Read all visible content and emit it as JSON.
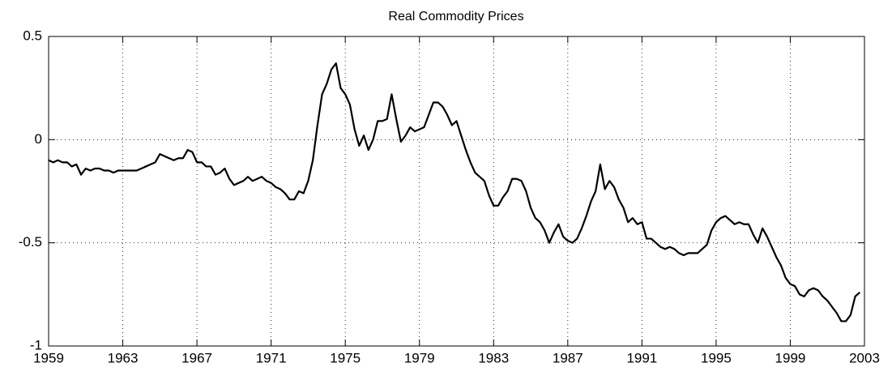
{
  "chart_data": {
    "type": "line",
    "title": "Real Commodity Prices",
    "color": "#000000",
    "grid": true,
    "x": [
      1959,
      1959.25,
      1959.5,
      1959.75,
      1960,
      1960.25,
      1960.5,
      1960.75,
      1961,
      1961.25,
      1961.5,
      1961.75,
      1962,
      1962.25,
      1962.5,
      1962.75,
      1963,
      1963.25,
      1963.5,
      1963.75,
      1964,
      1964.25,
      1964.5,
      1964.75,
      1965,
      1965.25,
      1965.5,
      1965.75,
      1966,
      1966.25,
      1966.5,
      1966.75,
      1967,
      1967.25,
      1967.5,
      1967.75,
      1968,
      1968.25,
      1968.5,
      1968.75,
      1969,
      1969.25,
      1969.5,
      1969.75,
      1970,
      1970.25,
      1970.5,
      1970.75,
      1971,
      1971.25,
      1971.5,
      1971.75,
      1972,
      1972.25,
      1972.5,
      1972.75,
      1973,
      1973.25,
      1973.5,
      1973.75,
      1974,
      1974.25,
      1974.5,
      1974.75,
      1975,
      1975.25,
      1975.5,
      1975.75,
      1976,
      1976.25,
      1976.5,
      1976.75,
      1977,
      1977.25,
      1977.5,
      1977.75,
      1978,
      1978.25,
      1978.5,
      1978.75,
      1979,
      1979.25,
      1979.5,
      1979.75,
      1980,
      1980.25,
      1980.5,
      1980.75,
      1981,
      1981.25,
      1981.5,
      1981.75,
      1982,
      1982.25,
      1982.5,
      1982.75,
      1983,
      1983.25,
      1983.5,
      1983.75,
      1984,
      1984.25,
      1984.5,
      1984.75,
      1985,
      1985.25,
      1985.5,
      1985.75,
      1986,
      1986.25,
      1986.5,
      1986.75,
      1987,
      1987.25,
      1987.5,
      1987.75,
      1988,
      1988.25,
      1988.5,
      1988.75,
      1989,
      1989.25,
      1989.5,
      1989.75,
      1990,
      1990.25,
      1990.5,
      1990.75,
      1991,
      1991.25,
      1991.5,
      1991.75,
      1992,
      1992.25,
      1992.5,
      1992.75,
      1993,
      1993.25,
      1993.5,
      1993.75,
      1994,
      1994.25,
      1994.5,
      1994.75,
      1995,
      1995.25,
      1995.5,
      1995.75,
      1996,
      1996.25,
      1996.5,
      1996.75,
      1997,
      1997.25,
      1997.5,
      1997.75,
      1998,
      1998.25,
      1998.5,
      1998.75,
      1999,
      1999.25,
      1999.5,
      1999.75,
      2000,
      2000.25,
      2000.5,
      2000.75,
      2001,
      2001.25,
      2001.5,
      2001.75,
      2002,
      2002.25,
      2002.5,
      2002.75
    ],
    "values": [
      -0.1,
      -0.11,
      -0.1,
      -0.11,
      -0.11,
      -0.13,
      -0.12,
      -0.17,
      -0.14,
      -0.15,
      -0.14,
      -0.14,
      -0.15,
      -0.15,
      -0.16,
      -0.15,
      -0.15,
      -0.15,
      -0.15,
      -0.15,
      -0.14,
      -0.13,
      -0.12,
      -0.11,
      -0.07,
      -0.08,
      -0.09,
      -0.1,
      -0.09,
      -0.09,
      -0.05,
      -0.06,
      -0.11,
      -0.11,
      -0.13,
      -0.13,
      -0.17,
      -0.16,
      -0.14,
      -0.19,
      -0.22,
      -0.21,
      -0.2,
      -0.18,
      -0.2,
      -0.19,
      -0.18,
      -0.2,
      -0.21,
      -0.23,
      -0.24,
      -0.26,
      -0.29,
      -0.29,
      -0.25,
      -0.26,
      -0.2,
      -0.1,
      0.07,
      0.22,
      0.27,
      0.34,
      0.37,
      0.25,
      0.22,
      0.17,
      0.05,
      -0.03,
      0.02,
      -0.05,
      0.0,
      0.09,
      0.09,
      0.1,
      0.22,
      0.1,
      -0.01,
      0.02,
      0.06,
      0.04,
      0.05,
      0.06,
      0.12,
      0.18,
      0.18,
      0.16,
      0.12,
      0.07,
      0.09,
      0.02,
      -0.05,
      -0.11,
      -0.16,
      -0.18,
      -0.2,
      -0.27,
      -0.32,
      -0.32,
      -0.28,
      -0.25,
      -0.19,
      -0.19,
      -0.2,
      -0.25,
      -0.33,
      -0.38,
      -0.4,
      -0.44,
      -0.5,
      -0.45,
      -0.41,
      -0.47,
      -0.49,
      -0.5,
      -0.48,
      -0.43,
      -0.37,
      -0.3,
      -0.25,
      -0.12,
      -0.24,
      -0.2,
      -0.23,
      -0.29,
      -0.33,
      -0.4,
      -0.38,
      -0.41,
      -0.4,
      -0.48,
      -0.48,
      -0.5,
      -0.52,
      -0.53,
      -0.52,
      -0.53,
      -0.55,
      -0.56,
      -0.55,
      -0.55,
      -0.55,
      -0.53,
      -0.51,
      -0.44,
      -0.4,
      -0.38,
      -0.37,
      -0.39,
      -0.41,
      -0.4,
      -0.41,
      -0.41,
      -0.46,
      -0.5,
      -0.43,
      -0.47,
      -0.52,
      -0.57,
      -0.61,
      -0.67,
      -0.7,
      -0.71,
      -0.75,
      -0.76,
      -0.73,
      -0.72,
      -0.73,
      -0.76,
      -0.78,
      -0.81,
      -0.84,
      -0.88,
      -0.88,
      -0.85,
      -0.76,
      -0.74
    ],
    "xlim": [
      1959,
      2003
    ],
    "xticks": [
      1959,
      1963,
      1967,
      1971,
      1975,
      1979,
      1983,
      1987,
      1991,
      1995,
      1999,
      2003
    ],
    "ylim": [
      -1,
      0.5
    ],
    "yticks": [
      -1,
      -0.5,
      0,
      0.5
    ]
  }
}
